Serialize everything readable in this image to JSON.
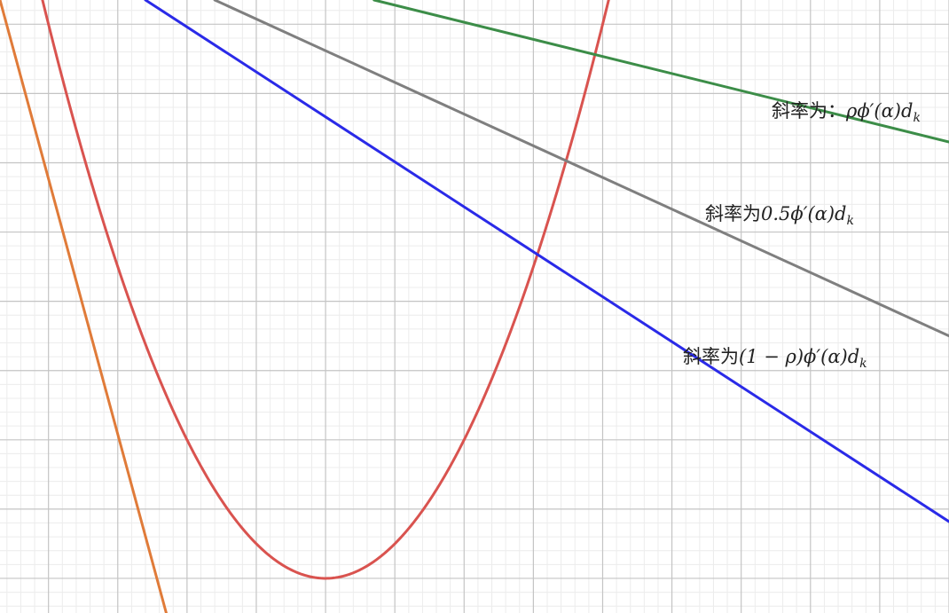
{
  "chart_data": {
    "type": "line",
    "title": "",
    "xlabel": "",
    "ylabel": "",
    "grid": true,
    "xlim": [
      -4.7,
      9.0
    ],
    "ylim": [
      -0.5,
      8.35
    ],
    "grid_major_step": 1,
    "grid_minor_step": 0.2,
    "series": [
      {
        "kind": "function",
        "function": "parabola",
        "vertex": [
          0.0,
          0.0
        ],
        "a": 0.5,
        "color": "#d9534f"
      },
      {
        "kind": "line",
        "color": "#3c8d48",
        "points": [
          [
            0.7,
            8.35
          ],
          [
            9.0,
            6.3
          ]
        ]
      },
      {
        "kind": "line",
        "color": "#7f7f7f",
        "points": [
          [
            -1.6,
            8.35
          ],
          [
            9.0,
            3.5
          ]
        ]
      },
      {
        "kind": "line",
        "color": "#2a2ae8",
        "points": [
          [
            -2.6,
            8.35
          ],
          [
            9.0,
            0.82
          ]
        ]
      },
      {
        "kind": "line",
        "color": "#e07b39",
        "points": [
          [
            -4.7,
            8.35
          ],
          [
            -2.3,
            -0.5
          ]
        ]
      }
    ],
    "annotations": [
      {
        "prefix": "斜率为：",
        "math": "ρϕ′(α)d",
        "subscript": "k",
        "series_color": "#3c8d48"
      },
      {
        "prefix": "斜率为",
        "math": "0.5ϕ′(α)d",
        "subscript": "k",
        "series_color": "#7f7f7f"
      },
      {
        "prefix": "斜率为",
        "math": "(1 − ρ)ϕ′(α)d",
        "subscript": "k",
        "series_color": "#2a2ae8"
      }
    ]
  }
}
